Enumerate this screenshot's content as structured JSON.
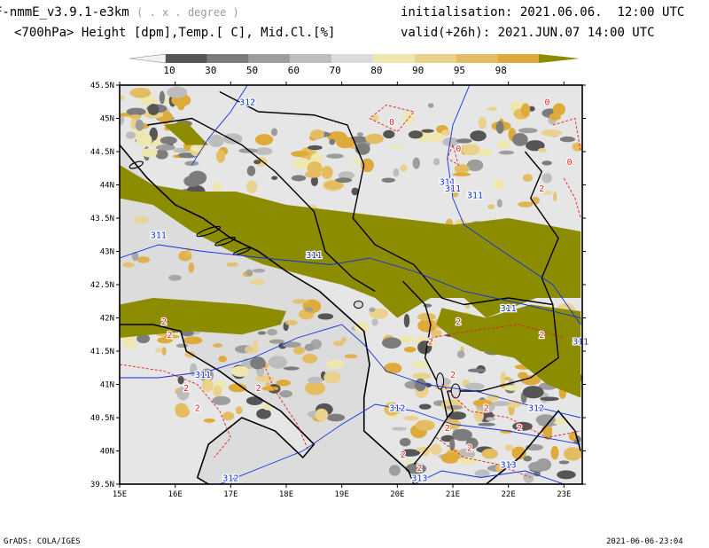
{
  "header": {
    "model": "F-nmmE_v3.9.1-e3km",
    "projection": "( . x . degree )",
    "variables": "<700hPa> Height [dpm],Temp.[ C], Mid.Cl.[%]",
    "init_label": "initialisation:",
    "init_value": "2021.06.06.  12:00 UTC",
    "valid_label": "valid(+26h):",
    "valid_value": "2021.JUN.07 14:00 UTC"
  },
  "colorbar": {
    "levels": [
      "10",
      "30",
      "50",
      "60",
      "70",
      "80",
      "90",
      "95",
      "98"
    ],
    "colors": [
      "#f2f2f2",
      "#555555",
      "#7c7c7c",
      "#9d9d9d",
      "#bdbdbd",
      "#dcdcdc",
      "#efe7b0",
      "#ead28d",
      "#e4bd62",
      "#deaa3a",
      "#8c8c00"
    ]
  },
  "map": {
    "lon_labels": [
      "15E",
      "16E",
      "17E",
      "18E",
      "19E",
      "20E",
      "21E",
      "22E",
      "23E"
    ],
    "lat_labels": [
      "45.5N",
      "45N",
      "44.5N",
      "44N",
      "43.5N",
      "43N",
      "42.5N",
      "42N",
      "41.5N",
      "41N",
      "40.5N",
      "40N",
      "39.5N"
    ],
    "lon_range": [
      15,
      23.33
    ],
    "lat_range": [
      39.5,
      45.5
    ],
    "colors": {
      "sea": "#dcdcdc",
      "land": "#e6e6e6",
      "cloud_full": "#8c8c00",
      "height_contour": "#1030e0",
      "temp_contour": "#e02020",
      "coast": "#000000"
    },
    "height_labels": [
      "312",
      "311",
      "311",
      "311",
      "311",
      "311",
      "311",
      "311",
      "312",
      "312",
      "313",
      "313",
      "312",
      "311"
    ],
    "temp_labels": [
      "0",
      "0",
      "0",
      "0",
      "2",
      "2",
      "2",
      "2",
      "2",
      "2",
      "2",
      "2",
      "2",
      "2",
      "2",
      "2",
      "2",
      "2",
      "2",
      "2"
    ]
  },
  "footer": {
    "left": "GrADS: COLA/IGES",
    "right": "2021-06-06-23:04"
  }
}
